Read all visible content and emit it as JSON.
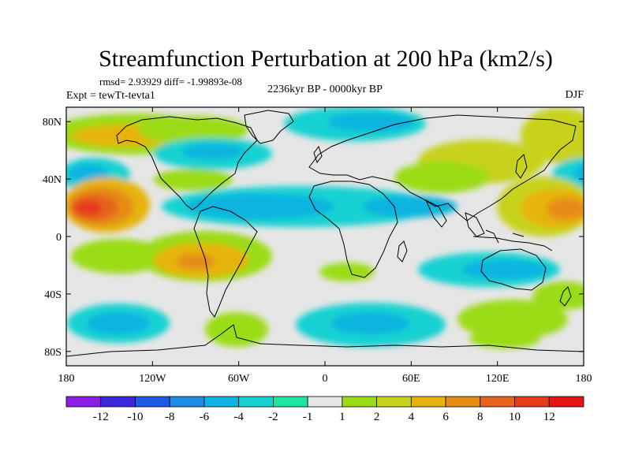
{
  "title": "Streamfunction Perturbation at 200 hPa (km2/s)",
  "stats": "rmsd= 2.93929 diff= -1.99893e-08",
  "experiment": "Expt = tewTt-tevta1",
  "period": "2236kyr BP - 0000kyr BP",
  "season": "DJF",
  "y_ticks": [
    {
      "label": "80N",
      "lat": 80
    },
    {
      "label": "40N",
      "lat": 40
    },
    {
      "label": "0",
      "lat": 0
    },
    {
      "label": "40S",
      "lat": -40
    },
    {
      "label": "80S",
      "lat": -80
    }
  ],
  "x_ticks": [
    {
      "label": "180",
      "lon": -180
    },
    {
      "label": "120W",
      "lon": -120
    },
    {
      "label": "60W",
      "lon": -60
    },
    {
      "label": "0",
      "lon": 0
    },
    {
      "label": "60E",
      "lon": 60
    },
    {
      "label": "120E",
      "lon": 120
    },
    {
      "label": "180",
      "lon": 180
    }
  ],
  "colorbar": {
    "levels": [
      "-12",
      "-10",
      "-8",
      "-6",
      "-4",
      "-2",
      "-1",
      "1",
      "2",
      "4",
      "6",
      "8",
      "10",
      "12"
    ],
    "colors": [
      "#8c1ee6",
      "#3c28dc",
      "#1e5ae6",
      "#1e8ce6",
      "#10b4e0",
      "#14d2d2",
      "#1ee6a0",
      "#e6e6e6",
      "#9bdc14",
      "#c8d21e",
      "#e6b40a",
      "#e68c14",
      "#e6641e",
      "#e63c1e",
      "#e61414"
    ]
  },
  "colors": {
    "land_outline": "#000000",
    "neutral": "#e6e6e6"
  }
}
